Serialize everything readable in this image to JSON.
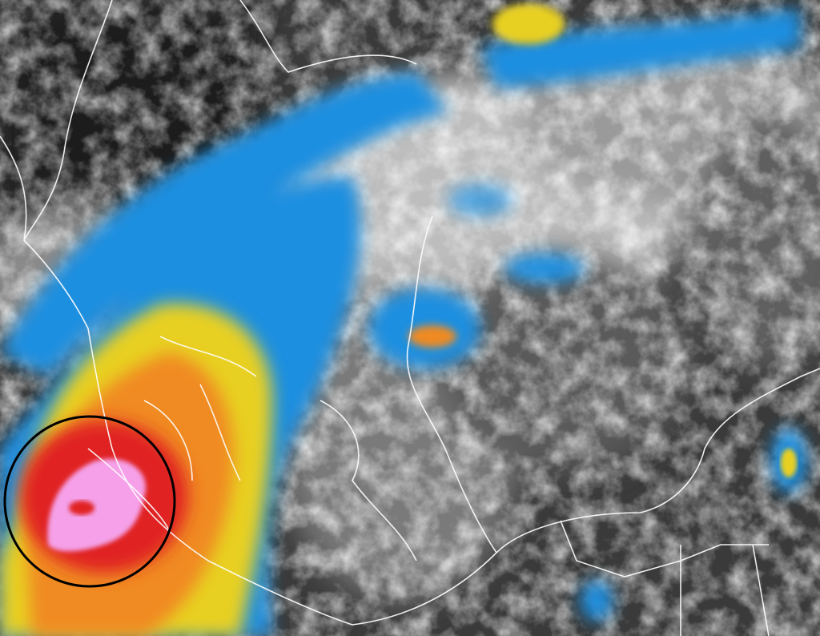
{
  "image": {
    "kind": "infrared-satellite-image",
    "features": [
      "hurricane",
      "cloud-bands",
      "coastlines",
      "state-borders",
      "highlight-circle"
    ],
    "colors": {
      "background": "#3a3a3a",
      "cloud_light": "#d8d8d8",
      "cloud_cold": "#1e8fe0",
      "band_yellow": "#e8d020",
      "band_orange": "#f08a20",
      "band_red": "#e02020",
      "eye_pink": "#f5a0e8",
      "borders": "#ffffff",
      "circle": "#000000"
    }
  }
}
